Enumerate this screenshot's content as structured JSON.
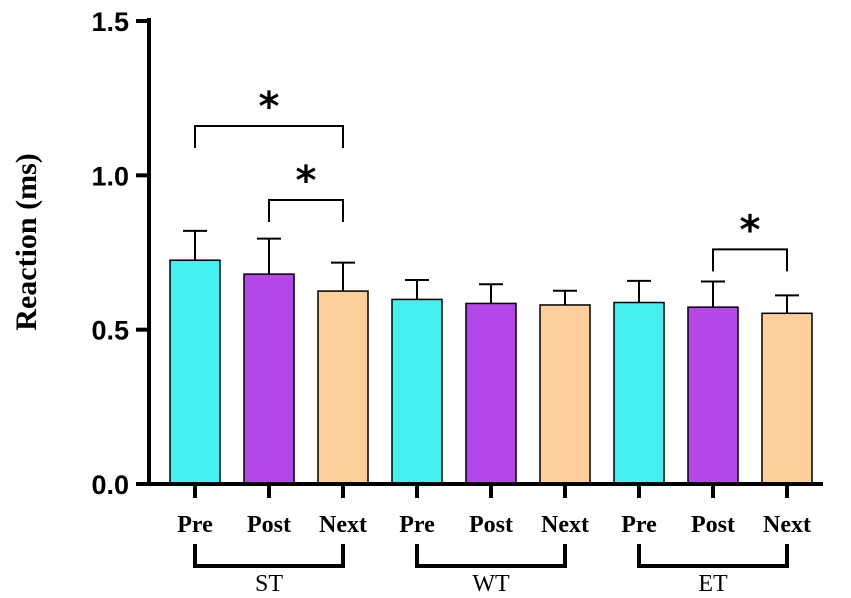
{
  "chart_data": {
    "type": "bar",
    "title": "",
    "xlabel": "",
    "ylabel": "Reaction (ms)",
    "ylim": [
      0,
      1.5
    ],
    "yticks": [
      "0.0",
      "0.5",
      "1.0",
      "1.5"
    ],
    "ytick_values": [
      0,
      0.5,
      1.0,
      1.5
    ],
    "grid": false,
    "legend": "none",
    "categories": [
      "Pre",
      "Post",
      "Next",
      "Pre",
      "Post",
      "Next",
      "Pre",
      "Post",
      "Next"
    ],
    "groups": [
      {
        "label": "ST",
        "members": [
          0,
          1,
          2
        ]
      },
      {
        "label": "WT",
        "members": [
          3,
          4,
          5
        ]
      },
      {
        "label": "ET",
        "members": [
          6,
          7,
          8
        ]
      }
    ],
    "values": [
      0.725,
      0.68,
      0.625,
      0.598,
      0.585,
      0.58,
      0.588,
      0.573,
      0.553
    ],
    "errors": [
      0.095,
      0.115,
      0.092,
      0.063,
      0.062,
      0.046,
      0.07,
      0.083,
      0.058
    ],
    "colors": [
      "#44f0f0",
      "#b447e8",
      "#fdcf9a",
      "#44f0f0",
      "#b447e8",
      "#fdcf9a",
      "#44f0f0",
      "#b447e8",
      "#fdcf9a"
    ],
    "significance": [
      {
        "from": 0,
        "to": 2,
        "label": "*",
        "level": 1.16
      },
      {
        "from": 1,
        "to": 2,
        "label": "*",
        "level": 0.92
      },
      {
        "from": 7,
        "to": 8,
        "label": "*",
        "level": 0.76
      }
    ]
  }
}
